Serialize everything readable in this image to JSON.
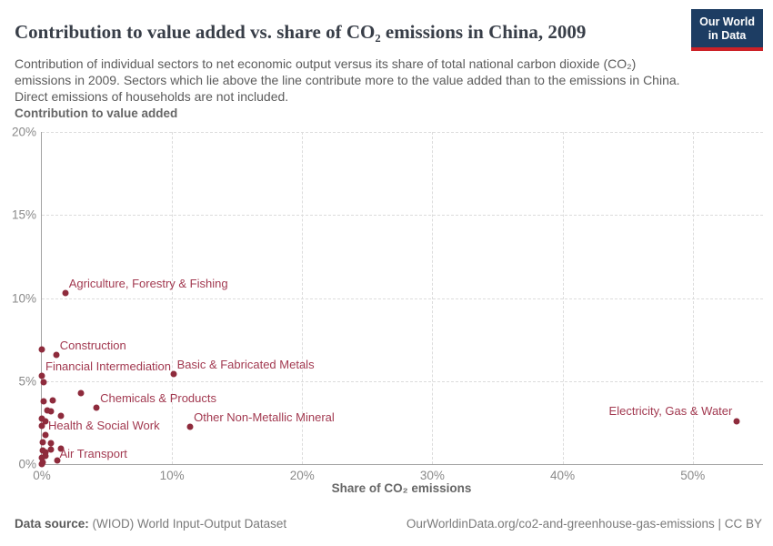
{
  "header": {
    "title": "Contribution to value added vs. share of CO₂ emissions in China, 2009",
    "subtitle": "Contribution of individual sectors to net economic output versus its share of total national carbon dioxide (CO₂) emissions in 2009. Sectors which lie above the line contribute more to the value added than to the emissions in China. Direct emissions of households are not included.",
    "logo": {
      "line1": "Our World",
      "line2": "in Data"
    }
  },
  "footer": {
    "source_label": "Data source:",
    "source_value": " (WIOD) World Input-Output Dataset",
    "right_text": "OurWorldinData.org/co2-and-greenhouse-gas-emissions | CC BY"
  },
  "colors": {
    "point": "#8e2b3c",
    "point_label": "#a23950",
    "logo_navy": "#1d3d63",
    "logo_red": "#cc2127",
    "grid": "#dcdcdc",
    "axis": "#a3a3a3"
  },
  "chart_data": {
    "type": "scatter",
    "title": "Contribution to value added vs. share of CO₂ emissions in China, 2009",
    "xlabel": "Share of CO₂ emissions",
    "ylabel": "Contribution to value added",
    "xlim": [
      0,
      55.4
    ],
    "ylim": [
      0,
      20
    ],
    "x_ticks": [
      0,
      10,
      20,
      30,
      40,
      50
    ],
    "y_ticks": [
      0,
      5,
      10,
      15,
      20
    ],
    "tick_suffix": "%",
    "grid": true,
    "legend_position": "none",
    "points": [
      {
        "sector": "Agriculture, Forestry & Fishing",
        "x": 1.8,
        "y": 10.3,
        "label_pos": "ne"
      },
      {
        "sector": "Construction",
        "x": 1.1,
        "y": 6.55,
        "label_pos": "ne"
      },
      {
        "sector": "Financial Intermediation",
        "x": 0.0,
        "y": 5.3,
        "label_pos": "ne"
      },
      {
        "sector": "Basic & Fabricated Metals",
        "x": 10.1,
        "y": 5.4,
        "label_pos": "ne"
      },
      {
        "sector": "Chemicals & Products",
        "x": 4.2,
        "y": 3.4,
        "label_pos": "ne"
      },
      {
        "sector": "Other Non-Metallic Mineral",
        "x": 11.4,
        "y": 2.25,
        "label_pos": "ne"
      },
      {
        "sector": "Health & Social Work",
        "x": 0.0,
        "y": 2.3,
        "label_pos": "e"
      },
      {
        "sector": "Air Transport",
        "x": 1.5,
        "y": 0.95,
        "label_pos": "se"
      },
      {
        "sector": "Electricity, Gas & Water",
        "x": 53.4,
        "y": 2.6,
        "label_pos": "nw"
      },
      {
        "sector": "",
        "x": 0.0,
        "y": 6.9
      },
      {
        "sector": "",
        "x": 0.15,
        "y": 4.95
      },
      {
        "sector": "",
        "x": 3.0,
        "y": 4.3
      },
      {
        "sector": "",
        "x": 0.15,
        "y": 3.8
      },
      {
        "sector": "",
        "x": 0.85,
        "y": 3.85
      },
      {
        "sector": "",
        "x": 0.4,
        "y": 3.25
      },
      {
        "sector": "",
        "x": 0.7,
        "y": 3.2
      },
      {
        "sector": "",
        "x": 1.5,
        "y": 2.9
      },
      {
        "sector": "",
        "x": 0.0,
        "y": 2.75
      },
      {
        "sector": "",
        "x": 0.25,
        "y": 2.6
      },
      {
        "sector": "",
        "x": 0.3,
        "y": 1.75
      },
      {
        "sector": "",
        "x": 0.05,
        "y": 1.3
      },
      {
        "sector": "",
        "x": 0.7,
        "y": 1.25
      },
      {
        "sector": "",
        "x": 0.05,
        "y": 0.8
      },
      {
        "sector": "",
        "x": 0.3,
        "y": 0.7
      },
      {
        "sector": "",
        "x": 0.7,
        "y": 0.9
      },
      {
        "sector": "",
        "x": 0.25,
        "y": 0.5
      },
      {
        "sector": "",
        "x": 0.0,
        "y": 0.4
      },
      {
        "sector": "",
        "x": 1.2,
        "y": 0.2
      },
      {
        "sector": "",
        "x": 0.05,
        "y": 0.1
      },
      {
        "sector": "",
        "x": 0.0,
        "y": 0.0
      }
    ]
  }
}
